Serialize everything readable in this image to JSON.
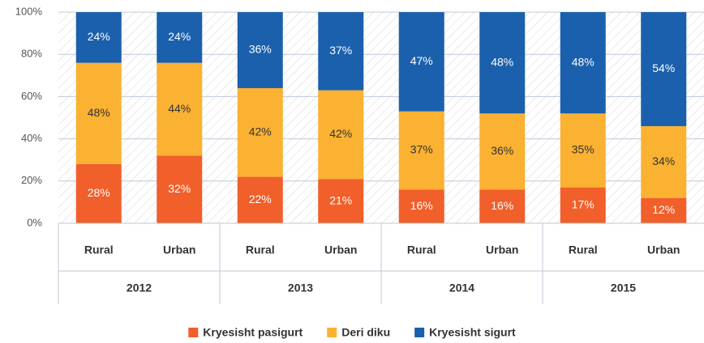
{
  "chart_data": {
    "type": "stacked_bar",
    "groups": [
      "2012",
      "2013",
      "2014",
      "2015"
    ],
    "categories": [
      "Rural",
      "Urban",
      "Rural",
      "Urban",
      "Rural",
      "Urban",
      "Rural",
      "Urban"
    ],
    "series": [
      {
        "name": "Kryesisht pasigurt",
        "color": "#f15f2b",
        "label_color": "#ffffff",
        "values": [
          28,
          32,
          22,
          21,
          16,
          16,
          17,
          12
        ],
        "value_labels": [
          "28%",
          "32%",
          "22%",
          "21%",
          "16%",
          "16%",
          "17%",
          "12%"
        ]
      },
      {
        "name": "Deri diku",
        "color": "#fbb131",
        "label_color": "#333333",
        "values": [
          48,
          44,
          42,
          42,
          37,
          36,
          35,
          34
        ],
        "value_labels": [
          "48%",
          "44%",
          "42%",
          "42%",
          "37%",
          "36%",
          "35%",
          "34%"
        ]
      },
      {
        "name": "Kryesisht sigurt",
        "color": "#1a60ac",
        "label_color": "#ffffff",
        "values": [
          24,
          24,
          36,
          37,
          47,
          48,
          48,
          54
        ],
        "value_labels": [
          "24%",
          "24%",
          "36%",
          "37%",
          "47%",
          "48%",
          "48%",
          "54%"
        ]
      }
    ],
    "ylim": [
      0,
      100
    ],
    "yticks": [
      {
        "value": 0,
        "label": "0%"
      },
      {
        "value": 20,
        "label": "20%"
      },
      {
        "value": 40,
        "label": "40%"
      },
      {
        "value": 60,
        "label": "60%"
      },
      {
        "value": 80,
        "label": "80%"
      },
      {
        "value": 100,
        "label": "100%"
      }
    ],
    "grid": true,
    "legend": "bottom"
  }
}
